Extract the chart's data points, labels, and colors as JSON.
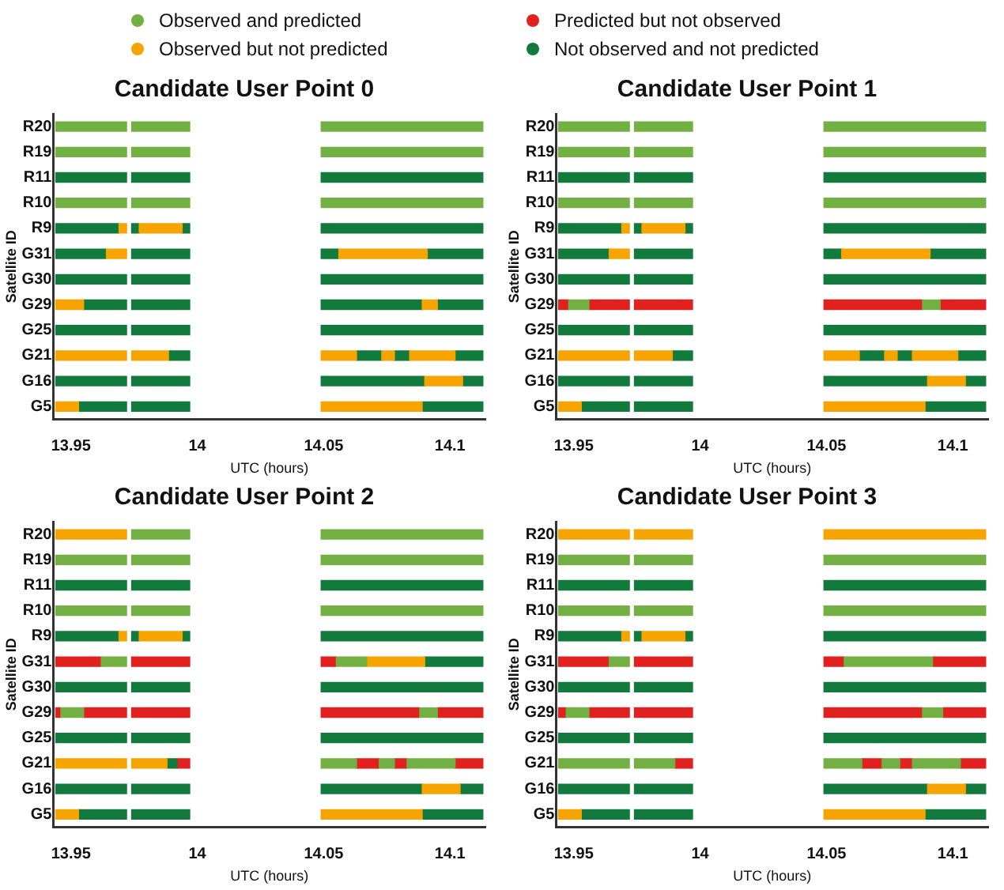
{
  "chart_data": [
    {
      "type": "bar",
      "orientation": "horizontal",
      "title": "Candidate User Point 0",
      "xlabel": "UTC (hours)",
      "ylabel": "Satellite ID",
      "legend": "top",
      "grid": false,
      "categories": [
        "R20",
        "R19",
        "R11",
        "R10",
        "R9",
        "G31",
        "G30",
        "G29",
        "G25",
        "G21",
        "G16",
        "G5"
      ],
      "xlim": [
        13.943,
        14.114
      ],
      "xticks": [
        13.95,
        14,
        14.05,
        14.1
      ],
      "series": [
        {
          "name": "Observed and predicted",
          "color": "#72b043",
          "base": [
            13.944,
            13.944,
            null,
            13.944,
            null,
            null,
            null,
            null,
            null,
            null,
            null,
            null
          ],
          "values": [
            0.028,
            0.028,
            null,
            0.028,
            null,
            null,
            null,
            null,
            null,
            null,
            null,
            null
          ]
        },
        {
          "name": "Observed but not predicted",
          "color": "#f5a400",
          "base": [
            null,
            null,
            null,
            null,
            13.969,
            13.964,
            null,
            13.944,
            null,
            13.944,
            14.09,
            13.944
          ],
          "values": [
            null,
            null,
            null,
            null,
            0.003,
            0.008,
            null,
            0.011,
            null,
            0.028,
            0.015,
            0.009
          ]
        },
        {
          "name": "Predicted but not observed",
          "color": "#e0211f",
          "base": [
            null,
            null,
            null,
            null,
            null,
            null,
            null,
            null,
            null,
            null,
            null,
            null
          ],
          "values": [
            null,
            null,
            null,
            null,
            null,
            null,
            null,
            null,
            null,
            null,
            null,
            null
          ]
        },
        {
          "name": "Not observed and not predicted",
          "color": "#117a3c",
          "base": [
            null,
            null,
            13.944,
            null,
            13.944,
            13.944,
            13.944,
            13.955,
            13.944,
            13.989,
            13.944,
            13.953
          ],
          "values": [
            null,
            null,
            0.028,
            null,
            0.025,
            0.02,
            0.028,
            0.017,
            0.028,
            0.008,
            0.028,
            0.019
          ]
        },
        {
          "color": "#72b043",
          "base": [
            13.974,
            13.974,
            null,
            13.974,
            null,
            null,
            null,
            null,
            null,
            null,
            null,
            null
          ],
          "values": [
            0.023,
            0.023,
            null,
            0.023,
            null,
            null,
            null,
            null,
            null,
            null,
            null,
            null
          ]
        },
        {
          "color": "#72b043",
          "base": [
            14.049,
            14.049,
            null,
            14.049,
            null,
            null,
            null,
            null,
            null,
            null,
            null,
            null
          ],
          "values": [
            0.064,
            0.064,
            null,
            0.064,
            null,
            null,
            null,
            null,
            null,
            null,
            null,
            null
          ]
        },
        {
          "color": "#f5a400",
          "base": [
            null,
            null,
            null,
            null,
            13.977,
            14.056,
            null,
            14.089,
            null,
            13.974,
            null,
            14.049
          ],
          "values": [
            null,
            null,
            null,
            null,
            0.017,
            0.035,
            null,
            0.006,
            null,
            0.015,
            null,
            0.04
          ]
        },
        {
          "color": "#f5a400",
          "base": [
            null,
            null,
            null,
            null,
            null,
            null,
            null,
            null,
            null,
            14.049,
            null,
            null
          ],
          "values": [
            null,
            null,
            null,
            null,
            null,
            null,
            null,
            null,
            null,
            0.014,
            null,
            null
          ]
        },
        {
          "color": "#f5a400",
          "base": [
            null,
            null,
            null,
            null,
            null,
            null,
            null,
            null,
            null,
            14.073,
            null,
            null
          ],
          "values": [
            null,
            null,
            null,
            null,
            null,
            null,
            null,
            null,
            null,
            0.005,
            null,
            null
          ]
        },
        {
          "color": "#f5a400",
          "base": [
            null,
            null,
            null,
            null,
            null,
            null,
            null,
            null,
            null,
            14.084,
            null,
            null
          ],
          "values": [
            null,
            null,
            null,
            null,
            null,
            null,
            null,
            null,
            null,
            0.018,
            null,
            null
          ]
        },
        {
          "color": "#117a3c",
          "base": [
            null,
            null,
            13.974,
            null,
            13.974,
            13.974,
            13.974,
            13.974,
            13.974,
            14.063,
            13.974,
            13.974
          ],
          "values": [
            null,
            null,
            0.023,
            null,
            0.003,
            0.023,
            0.023,
            0.023,
            0.023,
            0.01,
            0.023,
            0.023
          ]
        },
        {
          "color": "#117a3c",
          "base": [
            null,
            null,
            14.049,
            null,
            13.994,
            14.049,
            14.049,
            14.049,
            14.049,
            14.078,
            14.049,
            14.089
          ],
          "values": [
            null,
            null,
            0.064,
            null,
            0.003,
            0.007,
            0.064,
            0.04,
            0.064,
            0.006,
            0.041,
            0.024
          ]
        },
        {
          "color": "#117a3c",
          "base": [
            null,
            null,
            null,
            null,
            14.049,
            14.091,
            null,
            14.095,
            null,
            14.102,
            14.105,
            null
          ],
          "values": [
            null,
            null,
            null,
            null,
            0.064,
            0.022,
            null,
            0.018,
            null,
            0.011,
            0.008,
            null
          ]
        }
      ]
    },
    {
      "type": "bar",
      "orientation": "horizontal",
      "title": "Candidate User Point 1",
      "xlabel": "UTC (hours)",
      "ylabel": "Satellite ID",
      "grid": false,
      "categories": [
        "R20",
        "R19",
        "R11",
        "R10",
        "R9",
        "G31",
        "G30",
        "G29",
        "G25",
        "G21",
        "G16",
        "G5"
      ],
      "xlim": [
        13.943,
        14.114
      ],
      "xticks": [
        13.95,
        14,
        14.05,
        14.1
      ],
      "series": [
        {
          "color": "#72b043",
          "base": [
            13.944,
            13.944,
            null,
            13.944,
            null,
            null,
            null,
            13.948,
            null,
            null,
            null,
            null
          ],
          "values": [
            0.028,
            0.028,
            null,
            0.028,
            null,
            null,
            null,
            0.008,
            null,
            null,
            null,
            null
          ]
        },
        {
          "color": "#72b043",
          "base": [
            13.974,
            13.974,
            null,
            13.974,
            null,
            null,
            null,
            14.088,
            null,
            null,
            null,
            null
          ],
          "values": [
            0.023,
            0.023,
            null,
            0.023,
            null,
            null,
            null,
            0.007,
            null,
            null,
            null,
            null
          ]
        },
        {
          "color": "#72b043",
          "base": [
            14.049,
            14.049,
            null,
            14.049,
            null,
            null,
            null,
            null,
            null,
            null,
            null,
            null
          ],
          "values": [
            0.064,
            0.064,
            null,
            0.064,
            null,
            null,
            null,
            null,
            null,
            null,
            null,
            null
          ]
        },
        {
          "color": "#f5a400",
          "base": [
            null,
            null,
            null,
            null,
            13.969,
            13.964,
            null,
            null,
            null,
            13.944,
            14.09,
            13.944
          ],
          "values": [
            null,
            null,
            null,
            null,
            0.003,
            0.008,
            null,
            null,
            null,
            0.028,
            0.015,
            0.009
          ]
        },
        {
          "color": "#f5a400",
          "base": [
            null,
            null,
            null,
            null,
            13.977,
            14.056,
            null,
            null,
            null,
            13.974,
            null,
            14.049
          ],
          "values": [
            null,
            null,
            null,
            null,
            0.017,
            0.035,
            null,
            null,
            null,
            0.015,
            null,
            0.04
          ]
        },
        {
          "color": "#f5a400",
          "base": [
            null,
            null,
            null,
            null,
            null,
            null,
            null,
            null,
            null,
            14.049,
            null,
            null
          ],
          "values": [
            null,
            null,
            null,
            null,
            null,
            null,
            null,
            null,
            null,
            0.014,
            null,
            null
          ]
        },
        {
          "color": "#f5a400",
          "base": [
            null,
            null,
            null,
            null,
            null,
            null,
            null,
            null,
            null,
            14.073,
            null,
            null
          ],
          "values": [
            null,
            null,
            null,
            null,
            null,
            null,
            null,
            null,
            null,
            0.005,
            null,
            null
          ]
        },
        {
          "color": "#f5a400",
          "base": [
            null,
            null,
            null,
            null,
            null,
            null,
            null,
            null,
            null,
            14.084,
            null,
            null
          ],
          "values": [
            null,
            null,
            null,
            null,
            null,
            null,
            null,
            null,
            null,
            0.018,
            null,
            null
          ]
        },
        {
          "color": "#117a3c",
          "base": [
            null,
            null,
            13.944,
            null,
            13.944,
            13.944,
            13.944,
            null,
            13.944,
            13.989,
            13.944,
            13.953
          ],
          "values": [
            null,
            null,
            0.028,
            null,
            0.025,
            0.02,
            0.028,
            null,
            0.028,
            0.008,
            0.028,
            0.019
          ]
        },
        {
          "color": "#117a3c",
          "base": [
            null,
            null,
            13.974,
            null,
            13.974,
            13.974,
            13.974,
            null,
            13.974,
            14.063,
            13.974,
            13.974
          ],
          "values": [
            null,
            null,
            0.023,
            null,
            0.003,
            0.023,
            0.023,
            null,
            0.023,
            0.01,
            0.023,
            0.023
          ]
        },
        {
          "color": "#117a3c",
          "base": [
            null,
            null,
            14.049,
            null,
            13.994,
            14.049,
            14.049,
            null,
            14.049,
            14.078,
            14.049,
            14.089
          ],
          "values": [
            null,
            null,
            0.064,
            null,
            0.003,
            0.007,
            0.064,
            null,
            0.064,
            0.006,
            0.041,
            0.024
          ]
        },
        {
          "color": "#117a3c",
          "base": [
            null,
            null,
            null,
            null,
            14.049,
            14.091,
            null,
            null,
            null,
            14.102,
            14.105,
            null
          ],
          "values": [
            null,
            null,
            null,
            null,
            0.064,
            0.022,
            null,
            null,
            null,
            0.011,
            0.008,
            null
          ]
        },
        {
          "color": "#e0211f",
          "base": [
            null,
            null,
            null,
            null,
            null,
            null,
            null,
            13.944,
            null,
            null,
            null,
            null
          ],
          "values": [
            null,
            null,
            null,
            null,
            null,
            null,
            null,
            0.004,
            null,
            null,
            null,
            null
          ]
        },
        {
          "color": "#e0211f",
          "base": [
            null,
            null,
            null,
            null,
            null,
            null,
            null,
            13.956,
            null,
            null,
            null,
            null
          ],
          "values": [
            null,
            null,
            null,
            null,
            null,
            null,
            null,
            0.016,
            null,
            null,
            null,
            null
          ]
        },
        {
          "color": "#e0211f",
          "base": [
            null,
            null,
            null,
            null,
            null,
            null,
            null,
            13.974,
            null,
            null,
            null,
            null
          ],
          "values": [
            null,
            null,
            null,
            null,
            null,
            null,
            null,
            0.023,
            null,
            null,
            null,
            null
          ]
        },
        {
          "color": "#e0211f",
          "base": [
            null,
            null,
            null,
            null,
            null,
            null,
            null,
            14.049,
            null,
            null,
            null,
            null
          ],
          "values": [
            null,
            null,
            null,
            null,
            null,
            null,
            null,
            0.039,
            null,
            null,
            null,
            null
          ]
        },
        {
          "color": "#e0211f",
          "base": [
            null,
            null,
            null,
            null,
            null,
            null,
            null,
            14.095,
            null,
            null,
            null,
            null
          ],
          "values": [
            null,
            null,
            null,
            null,
            null,
            null,
            null,
            0.018,
            null,
            null,
            null,
            null
          ]
        }
      ]
    },
    {
      "type": "bar",
      "orientation": "horizontal",
      "title": "Candidate User Point 2",
      "xlabel": "UTC (hours)",
      "ylabel": "Satellite ID",
      "grid": false,
      "categories": [
        "R20",
        "R19",
        "R11",
        "R10",
        "R9",
        "G31",
        "G30",
        "G29",
        "G25",
        "G21",
        "G16",
        "G5"
      ],
      "xlim": [
        13.943,
        14.114
      ],
      "xticks": [
        13.95,
        14,
        14.05,
        14.1
      ],
      "series": [
        {
          "color": "#72b043",
          "base": [
            13.974,
            13.944,
            null,
            13.944,
            null,
            13.962,
            null,
            13.946,
            null,
            14.049,
            null,
            null
          ],
          "values": [
            0.023,
            0.028,
            null,
            0.028,
            null,
            0.01,
            null,
            0.009,
            null,
            0.014,
            null,
            null
          ]
        },
        {
          "color": "#72b043",
          "base": [
            14.049,
            13.974,
            null,
            13.974,
            null,
            14.055,
            null,
            14.088,
            null,
            14.072,
            null,
            null
          ],
          "values": [
            0.064,
            0.023,
            null,
            0.023,
            null,
            0.012,
            null,
            0.007,
            null,
            0.006,
            null,
            null
          ]
        },
        {
          "color": "#72b043",
          "base": [
            null,
            14.049,
            null,
            14.049,
            null,
            null,
            null,
            null,
            null,
            14.083,
            null,
            null
          ],
          "values": [
            null,
            0.064,
            null,
            0.064,
            null,
            null,
            null,
            null,
            null,
            0.019,
            null,
            null
          ]
        },
        {
          "color": "#f5a400",
          "base": [
            13.944,
            null,
            null,
            null,
            13.969,
            14.067,
            null,
            null,
            null,
            13.944,
            14.089,
            13.944
          ],
          "values": [
            0.028,
            null,
            null,
            null,
            0.003,
            0.023,
            null,
            null,
            null,
            0.028,
            0.015,
            0.009
          ]
        },
        {
          "color": "#f5a400",
          "base": [
            null,
            null,
            null,
            null,
            13.977,
            null,
            null,
            null,
            null,
            13.974,
            null,
            14.049
          ],
          "values": [
            null,
            null,
            null,
            null,
            0.017,
            null,
            null,
            null,
            null,
            0.014,
            null,
            0.04
          ]
        },
        {
          "color": "#117a3c",
          "base": [
            null,
            null,
            13.944,
            null,
            13.944,
            14.09,
            13.944,
            null,
            13.944,
            13.988,
            13.944,
            13.953
          ],
          "values": [
            null,
            null,
            0.028,
            null,
            0.025,
            0.023,
            0.028,
            null,
            0.028,
            0.004,
            0.028,
            0.019
          ]
        },
        {
          "color": "#117a3c",
          "base": [
            null,
            null,
            13.974,
            null,
            13.974,
            null,
            13.974,
            null,
            13.974,
            null,
            13.974,
            13.974
          ],
          "values": [
            null,
            null,
            0.023,
            null,
            0.003,
            null,
            0.023,
            null,
            0.023,
            null,
            0.023,
            0.023
          ]
        },
        {
          "color": "#117a3c",
          "base": [
            null,
            null,
            14.049,
            null,
            13.994,
            null,
            14.049,
            null,
            14.049,
            null,
            14.049,
            14.089
          ],
          "values": [
            null,
            null,
            0.064,
            null,
            0.003,
            null,
            0.064,
            null,
            0.064,
            null,
            0.04,
            0.024
          ]
        },
        {
          "color": "#117a3c",
          "base": [
            null,
            null,
            null,
            null,
            14.049,
            null,
            null,
            null,
            null,
            null,
            14.104,
            null
          ],
          "values": [
            null,
            null,
            null,
            null,
            0.064,
            null,
            null,
            null,
            null,
            null,
            0.009,
            null
          ]
        },
        {
          "color": "#e0211f",
          "base": [
            null,
            null,
            null,
            null,
            null,
            13.944,
            null,
            13.944,
            null,
            13.992,
            null,
            null
          ],
          "values": [
            null,
            null,
            null,
            null,
            null,
            0.018,
            null,
            0.002,
            null,
            0.005,
            null,
            null
          ]
        },
        {
          "color": "#e0211f",
          "base": [
            null,
            null,
            null,
            null,
            null,
            13.974,
            null,
            13.955,
            null,
            14.063,
            null,
            null
          ],
          "values": [
            null,
            null,
            null,
            null,
            null,
            0.023,
            null,
            0.017,
            null,
            0.009,
            null,
            null
          ]
        },
        {
          "color": "#e0211f",
          "base": [
            null,
            null,
            null,
            null,
            null,
            14.049,
            null,
            13.974,
            null,
            14.078,
            null,
            null
          ],
          "values": [
            null,
            null,
            null,
            null,
            null,
            0.006,
            null,
            0.023,
            null,
            0.005,
            null,
            null
          ]
        },
        {
          "color": "#e0211f",
          "base": [
            null,
            null,
            null,
            null,
            null,
            null,
            null,
            14.049,
            null,
            14.102,
            null,
            null
          ],
          "values": [
            null,
            null,
            null,
            null,
            null,
            null,
            null,
            0.039,
            null,
            0.011,
            null,
            null
          ]
        },
        {
          "color": "#e0211f",
          "base": [
            null,
            null,
            null,
            null,
            null,
            null,
            null,
            14.095,
            null,
            null,
            null,
            null
          ],
          "values": [
            null,
            null,
            null,
            null,
            null,
            null,
            null,
            0.018,
            null,
            null,
            null,
            null
          ]
        }
      ]
    },
    {
      "type": "bar",
      "orientation": "horizontal",
      "title": "Candidate User Point 3",
      "xlabel": "UTC (hours)",
      "ylabel": "Satellite ID",
      "grid": false,
      "categories": [
        "R20",
        "R19",
        "R11",
        "R10",
        "R9",
        "G31",
        "G30",
        "G29",
        "G25",
        "G21",
        "G16",
        "G5"
      ],
      "xlim": [
        13.943,
        14.114
      ],
      "xticks": [
        13.95,
        14,
        14.05,
        14.1
      ],
      "series": [
        {
          "color": "#72b043",
          "base": [
            null,
            13.944,
            null,
            13.944,
            null,
            13.964,
            null,
            13.947,
            null,
            13.944,
            null,
            null
          ],
          "values": [
            null,
            0.028,
            null,
            0.028,
            null,
            0.008,
            null,
            0.009,
            null,
            0.028,
            null,
            null
          ]
        },
        {
          "color": "#72b043",
          "base": [
            null,
            13.974,
            null,
            13.974,
            null,
            14.057,
            null,
            14.088,
            null,
            13.974,
            null,
            null
          ],
          "values": [
            null,
            0.023,
            null,
            0.023,
            null,
            0.035,
            null,
            0.008,
            null,
            0.016,
            null,
            null
          ]
        },
        {
          "color": "#72b043",
          "base": [
            null,
            14.049,
            null,
            14.049,
            null,
            null,
            null,
            null,
            null,
            14.049,
            null,
            null
          ],
          "values": [
            null,
            0.064,
            null,
            0.064,
            null,
            null,
            null,
            null,
            null,
            0.015,
            null,
            null
          ]
        },
        {
          "color": "#72b043",
          "base": [
            null,
            null,
            null,
            null,
            null,
            null,
            null,
            null,
            null,
            14.072,
            null,
            null
          ],
          "values": [
            null,
            null,
            null,
            null,
            null,
            null,
            null,
            null,
            null,
            0.007,
            null,
            null
          ]
        },
        {
          "color": "#72b043",
          "base": [
            null,
            null,
            null,
            null,
            null,
            null,
            null,
            null,
            null,
            14.084,
            null,
            null
          ],
          "values": [
            null,
            null,
            null,
            null,
            null,
            null,
            null,
            null,
            null,
            0.019,
            null,
            null
          ]
        },
        {
          "color": "#f5a400",
          "base": [
            13.944,
            null,
            null,
            null,
            13.969,
            null,
            null,
            null,
            null,
            null,
            14.09,
            13.944
          ],
          "values": [
            0.028,
            null,
            null,
            null,
            0.003,
            null,
            null,
            null,
            null,
            null,
            0.015,
            0.009
          ]
        },
        {
          "color": "#f5a400",
          "base": [
            13.974,
            null,
            null,
            null,
            13.977,
            null,
            null,
            null,
            null,
            null,
            null,
            14.049
          ],
          "values": [
            0.023,
            null,
            null,
            null,
            0.017,
            null,
            null,
            null,
            null,
            null,
            null,
            0.04
          ]
        },
        {
          "color": "#f5a400",
          "base": [
            14.049,
            null,
            null,
            null,
            null,
            null,
            null,
            null,
            null,
            null,
            null,
            null
          ],
          "values": [
            0.064,
            null,
            null,
            null,
            null,
            null,
            null,
            null,
            null,
            null,
            null,
            null
          ]
        },
        {
          "color": "#117a3c",
          "base": [
            null,
            null,
            13.944,
            null,
            13.944,
            null,
            13.944,
            null,
            13.944,
            null,
            13.944,
            13.953
          ],
          "values": [
            null,
            null,
            0.028,
            null,
            0.025,
            null,
            0.028,
            null,
            0.028,
            null,
            0.028,
            0.019
          ]
        },
        {
          "color": "#117a3c",
          "base": [
            null,
            null,
            13.974,
            null,
            13.974,
            null,
            13.974,
            null,
            13.974,
            null,
            13.974,
            13.974
          ],
          "values": [
            null,
            null,
            0.023,
            null,
            0.003,
            null,
            0.023,
            null,
            0.023,
            null,
            0.023,
            0.023
          ]
        },
        {
          "color": "#117a3c",
          "base": [
            null,
            null,
            14.049,
            null,
            13.994,
            null,
            14.049,
            null,
            14.049,
            null,
            14.049,
            14.089
          ],
          "values": [
            null,
            null,
            0.064,
            null,
            0.003,
            null,
            0.064,
            null,
            0.064,
            null,
            0.041,
            0.024
          ]
        },
        {
          "color": "#117a3c",
          "base": [
            null,
            null,
            null,
            null,
            14.049,
            null,
            null,
            null,
            null,
            null,
            14.105,
            null
          ],
          "values": [
            null,
            null,
            null,
            null,
            0.064,
            null,
            null,
            null,
            null,
            null,
            0.008,
            null
          ]
        },
        {
          "color": "#e0211f",
          "base": [
            null,
            null,
            null,
            null,
            null,
            13.944,
            null,
            13.944,
            null,
            13.99,
            null,
            null
          ],
          "values": [
            null,
            null,
            null,
            null,
            null,
            0.02,
            null,
            0.003,
            null,
            0.007,
            null,
            null
          ]
        },
        {
          "color": "#e0211f",
          "base": [
            null,
            null,
            null,
            null,
            null,
            13.974,
            null,
            13.956,
            null,
            14.064,
            null,
            null
          ],
          "values": [
            null,
            null,
            null,
            null,
            null,
            0.023,
            null,
            0.016,
            null,
            0.008,
            null,
            null
          ]
        },
        {
          "color": "#e0211f",
          "base": [
            null,
            null,
            null,
            null,
            null,
            14.049,
            null,
            13.974,
            null,
            14.079,
            null,
            null
          ],
          "values": [
            null,
            null,
            null,
            null,
            null,
            0.008,
            null,
            0.023,
            null,
            0.005,
            null,
            null
          ]
        },
        {
          "color": "#e0211f",
          "base": [
            null,
            null,
            null,
            null,
            null,
            14.092,
            null,
            14.049,
            null,
            14.103,
            null,
            null
          ],
          "values": [
            null,
            null,
            null,
            null,
            null,
            0.021,
            null,
            0.039,
            null,
            0.01,
            null,
            null
          ]
        },
        {
          "color": "#e0211f",
          "base": [
            null,
            null,
            null,
            null,
            null,
            null,
            null,
            14.096,
            null,
            null,
            null,
            null
          ],
          "values": [
            null,
            null,
            null,
            null,
            null,
            null,
            null,
            0.017,
            null,
            null,
            null,
            null
          ]
        }
      ]
    }
  ]
}
